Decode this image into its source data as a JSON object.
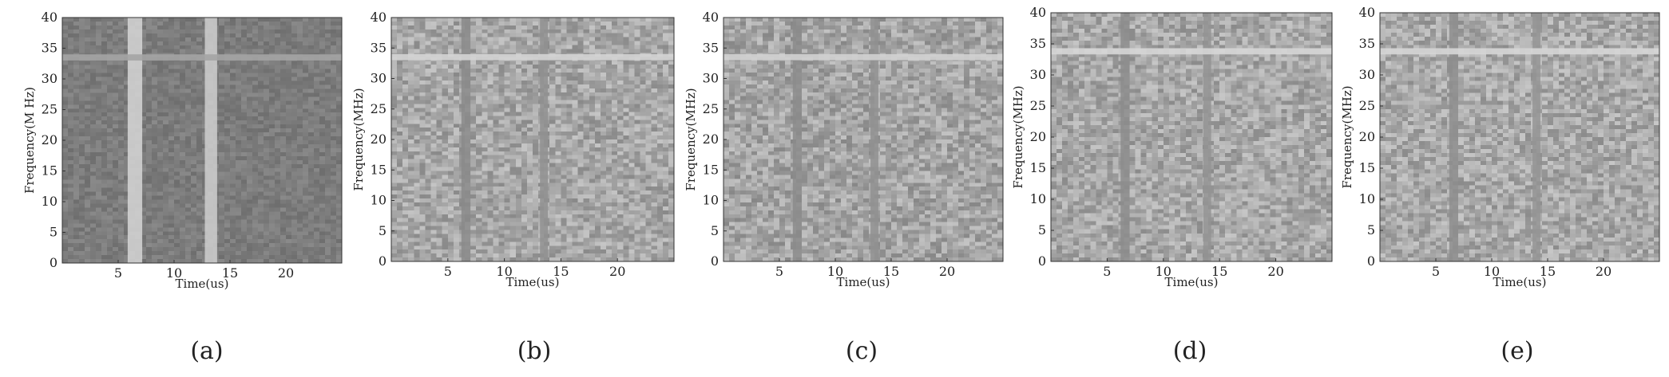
{
  "chart_data": [
    {
      "type": "heatmap",
      "panel": "(a)",
      "xlabel": "Time(us)",
      "ylabel": "Frequency(M Hz)",
      "xlim": [
        0,
        25
      ],
      "ylim": [
        0,
        40
      ],
      "xticks": [
        5,
        10,
        15,
        20
      ],
      "yticks": [
        0,
        5,
        10,
        15,
        20,
        25,
        30,
        35,
        40
      ],
      "background": "#7c7c7c",
      "noise": 14,
      "features": [
        {
          "orientation": "vertical",
          "at": 6.5,
          "width": 1.3,
          "value": "#d6d6d6"
        },
        {
          "orientation": "vertical",
          "at": 13.3,
          "width": 1.1,
          "value": "#cfcfcf"
        },
        {
          "orientation": "horizontal",
          "at": 33.5,
          "width": 1.0,
          "value": "#a4a4a4"
        }
      ]
    },
    {
      "type": "heatmap",
      "panel": "(b)",
      "xlabel": "Time(us)",
      "ylabel": "Frequency(MHz)",
      "xlim": [
        0,
        25
      ],
      "ylim": [
        0,
        40
      ],
      "xticks": [
        5,
        10,
        15,
        20
      ],
      "yticks": [
        0,
        5,
        10,
        15,
        20,
        25,
        30,
        35,
        40
      ],
      "background": "#a7a7a7",
      "noise": 30,
      "features": [
        {
          "orientation": "vertical",
          "at": 6.6,
          "width": 0.8,
          "value": "#8a8a8a"
        },
        {
          "orientation": "vertical",
          "at": 13.5,
          "width": 0.7,
          "value": "#909090"
        },
        {
          "orientation": "horizontal",
          "at": 33.5,
          "width": 1.0,
          "value": "#d4d4d4"
        }
      ]
    },
    {
      "type": "heatmap",
      "panel": "(c)",
      "xlabel": "Time(us)",
      "ylabel": "Frequency(MHz)",
      "xlim": [
        0,
        25
      ],
      "ylim": [
        0,
        40
      ],
      "xticks": [
        5,
        10,
        15,
        20
      ],
      "yticks": [
        0,
        5,
        10,
        15,
        20,
        25,
        30,
        35,
        40
      ],
      "background": "#a5a5a5",
      "noise": 30,
      "features": [
        {
          "orientation": "vertical",
          "at": 6.6,
          "width": 0.8,
          "value": "#8b8b8b"
        },
        {
          "orientation": "vertical",
          "at": 13.5,
          "width": 0.7,
          "value": "#919191"
        },
        {
          "orientation": "horizontal",
          "at": 33.5,
          "width": 1.0,
          "value": "#d2d2d2"
        }
      ]
    },
    {
      "type": "heatmap",
      "panel": "(d)",
      "xlabel": "Time(us)",
      "ylabel": "Frequency(MHz)",
      "xlim": [
        0,
        25
      ],
      "ylim": [
        0,
        40
      ],
      "xticks": [
        5,
        10,
        15,
        20
      ],
      "yticks": [
        0,
        5,
        10,
        15,
        20,
        25,
        30,
        35,
        40
      ],
      "background": "#a8a8a8",
      "noise": 30,
      "features": [
        {
          "orientation": "vertical",
          "at": 6.6,
          "width": 0.8,
          "value": "#8c8c8c"
        },
        {
          "orientation": "vertical",
          "at": 13.9,
          "width": 0.7,
          "value": "#939393"
        },
        {
          "orientation": "horizontal",
          "at": 33.8,
          "width": 1.0,
          "value": "#d6d6d6"
        }
      ]
    },
    {
      "type": "heatmap",
      "panel": "(e)",
      "xlabel": "Time(us)",
      "ylabel": "Frequency(MHz)",
      "xlim": [
        0,
        25
      ],
      "ylim": [
        0,
        40
      ],
      "xticks": [
        5,
        10,
        15,
        20
      ],
      "yticks": [
        0,
        5,
        10,
        15,
        20,
        25,
        30,
        35,
        40
      ],
      "background": "#a9a9a9",
      "noise": 30,
      "features": [
        {
          "orientation": "vertical",
          "at": 6.6,
          "width": 0.8,
          "value": "#8d8d8d"
        },
        {
          "orientation": "vertical",
          "at": 14.0,
          "width": 0.7,
          "value": "#949494"
        },
        {
          "orientation": "horizontal",
          "at": 33.8,
          "width": 1.0,
          "value": "#d6d6d6"
        }
      ]
    }
  ]
}
